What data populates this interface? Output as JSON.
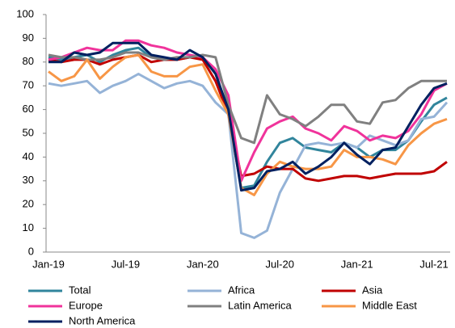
{
  "chart_data": {
    "type": "line",
    "categories": [
      "Jan-19",
      null,
      null,
      null,
      null,
      null,
      "Jul-19",
      null,
      null,
      null,
      null,
      null,
      "Jan-20",
      null,
      null,
      null,
      null,
      null,
      "Jul-20",
      null,
      null,
      null,
      null,
      null,
      "Jan-21",
      null,
      null,
      null,
      null,
      null,
      "Jul-21",
      null
    ],
    "ylim": [
      0,
      100
    ],
    "yticks": [
      0,
      10,
      20,
      30,
      40,
      50,
      60,
      70,
      80,
      90,
      100
    ],
    "grid": false,
    "legend": "bottom",
    "series": [
      {
        "name": "Total",
        "color": "#31859c",
        "values": [
          82,
          81,
          82,
          83,
          80,
          83,
          85,
          86,
          82,
          81,
          81,
          82,
          82,
          76,
          58,
          27,
          28,
          38,
          46,
          48,
          44,
          43,
          42,
          46,
          44,
          40,
          43,
          43,
          47,
          55,
          62,
          65
        ]
      },
      {
        "name": "Africa",
        "color": "#95b3d7",
        "values": [
          71,
          70,
          71,
          72,
          67,
          70,
          72,
          75,
          72,
          69,
          71,
          72,
          70,
          63,
          58,
          8,
          6,
          9,
          25,
          35,
          45,
          46,
          45,
          46,
          44,
          49,
          47,
          45,
          47,
          56,
          57,
          63
        ]
      },
      {
        "name": "Asia",
        "color": "#c00000",
        "values": [
          81,
          80,
          81,
          81,
          79,
          81,
          82,
          83,
          80,
          81,
          81,
          82,
          81,
          72,
          58,
          32,
          33,
          36,
          35,
          35,
          31,
          30,
          31,
          32,
          32,
          31,
          32,
          33,
          33,
          33,
          34,
          38
        ]
      },
      {
        "name": "Europe",
        "color": "#f0339b",
        "values": [
          81,
          82,
          84,
          86,
          85,
          85,
          89,
          89,
          87,
          86,
          84,
          83,
          82,
          77,
          66,
          30,
          42,
          52,
          55,
          57,
          52,
          50,
          47,
          53,
          51,
          47,
          49,
          48,
          51,
          58,
          68,
          71
        ]
      },
      {
        "name": "Latin America",
        "color": "#808080",
        "values": [
          83,
          82,
          82,
          81,
          81,
          82,
          84,
          84,
          82,
          81,
          82,
          82,
          83,
          82,
          62,
          48,
          46,
          66,
          58,
          56,
          53,
          57,
          62,
          62,
          55,
          54,
          63,
          64,
          69,
          72,
          72,
          72
        ]
      },
      {
        "name": "Middle East",
        "color": "#f79646",
        "values": [
          76,
          72,
          74,
          81,
          73,
          78,
          82,
          83,
          76,
          74,
          74,
          78,
          79,
          68,
          58,
          27,
          24,
          33,
          38,
          36,
          35,
          35,
          36,
          43,
          40,
          40,
          39,
          37,
          45,
          50,
          54,
          56
        ]
      },
      {
        "name": "North America",
        "color": "#002060",
        "values": [
          80,
          80,
          84,
          83,
          84,
          88,
          88,
          88,
          83,
          82,
          81,
          85,
          82,
          75,
          60,
          26,
          27,
          34,
          35,
          38,
          33,
          36,
          40,
          46,
          41,
          37,
          43,
          44,
          53,
          62,
          69,
          71
        ]
      }
    ]
  }
}
